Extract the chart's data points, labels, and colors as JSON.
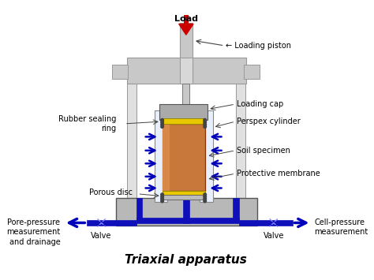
{
  "title": "Triaxial apparatus",
  "title_fontsize": 11,
  "background_color": "#ffffff",
  "labels": {
    "load": "Load",
    "loading_piston": "← Loading piston",
    "loading_cap": "Loading cap",
    "perspex_cylinder": "Perspex cylinder",
    "soil_specimen": "Soil specimen",
    "protective_membrane": "Protective membrane",
    "rubber_sealing_ring": "Rubber sealing\nring",
    "porous_disc": "Porous disc",
    "pore_pressure": "Pore-pressure\nmeasurement\nand drainage",
    "valve_left": "Valve",
    "valve_right": "Valve",
    "cell_pressure": "Cell-pressure\nmeasurement"
  },
  "colors": {
    "frame_fill": "#c8c8c8",
    "frame_dark": "#999999",
    "frame_light": "#e0e0e0",
    "piston_fill": "#d8d8d8",
    "soil_orange": "#c8783a",
    "soil_highlight": "#d88848",
    "yellow_disc": "#e8c800",
    "blue_arrow": "#0000bb",
    "blue_pipe": "#1010bb",
    "red_arrow": "#cc0000",
    "line_color": "#444444",
    "white": "#ffffff",
    "perspex_fill": "#e8f0ff",
    "cap_gray": "#aaaaaa",
    "base_fill": "#b8b8b8",
    "dot_color": "#444444"
  }
}
